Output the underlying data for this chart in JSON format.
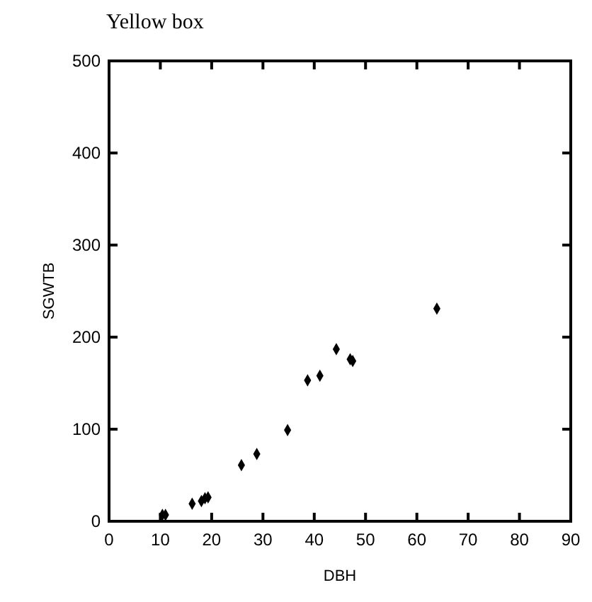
{
  "chart_data": {
    "type": "scatter",
    "title": "Yellow box",
    "xlabel": "DBH",
    "ylabel": "SGWTB",
    "marker": "diamond",
    "x": [
      10.4,
      11.0,
      16.2,
      18.0,
      18.7,
      19.3,
      25.8,
      28.8,
      34.8,
      38.7,
      41.1,
      44.3,
      47.0,
      47.5,
      63.9
    ],
    "values": [
      7,
      7,
      19,
      22,
      25,
      26,
      61,
      73,
      99,
      153,
      158,
      187,
      176,
      174,
      231
    ],
    "color": "#000000",
    "xlim": [
      0,
      90
    ],
    "xticks": [
      0,
      10,
      20,
      30,
      40,
      50,
      60,
      70,
      80,
      90
    ],
    "ylim": [
      0,
      500
    ],
    "yticks": [
      0,
      100,
      200,
      300,
      400,
      500
    ]
  }
}
